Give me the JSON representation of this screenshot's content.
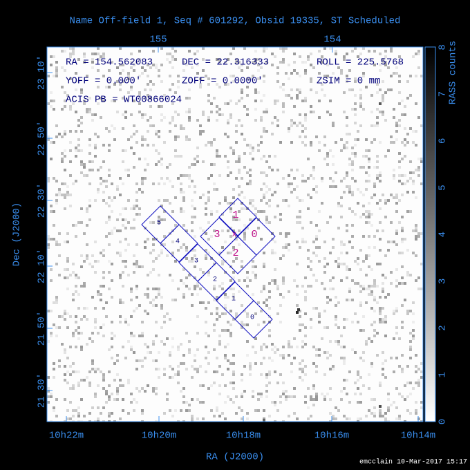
{
  "title": "Name Off-field 1, Seq # 601292, Obsid 19335, ST Scheduled",
  "top_ticks": [
    "155",
    "154"
  ],
  "left_ticks": [
    "23 10'",
    "22 50'",
    "22 30'",
    "22 10'",
    "21 50'",
    "21 30'"
  ],
  "bottom_ticks": [
    "10h22m",
    "10h20m",
    "10h18m",
    "10h16m",
    "10h14m"
  ],
  "x_axis_label": "RA (J2000)",
  "y_axis_label": "Dec (J2000)",
  "info": [
    [
      "RA = 154.562083",
      "DEC = 22.316333",
      "ROLL = 225.5768"
    ],
    [
      "YOFF =   0.000'",
      "ZOFF =   0.0000'",
      "ZSIM = 0 mm"
    ],
    [
      "ACIS PB = WT00866024"
    ]
  ],
  "acis_s_chips": [
    "0",
    "1",
    "2",
    "3",
    "4",
    "5"
  ],
  "acis_i_chips": [
    "0",
    "1",
    "2",
    "3"
  ],
  "colorbar": {
    "label": "RASS counts",
    "ticks": [
      "0",
      "1",
      "2",
      "3",
      "4",
      "5",
      "6",
      "7",
      "8"
    ]
  },
  "footer": "emcclain 10-Mar-2017 15:17"
}
